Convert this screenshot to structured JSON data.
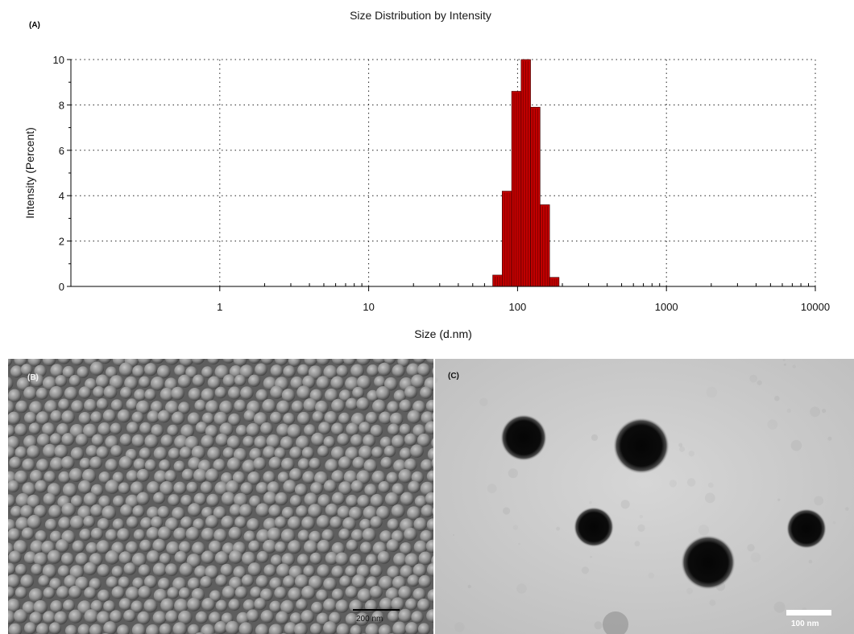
{
  "figure": {
    "panel_labels": {
      "a": "(A)",
      "b": "(B)",
      "c": "(C)"
    }
  },
  "chart_data": {
    "type": "bar",
    "title": "Size Distribution by Intensity",
    "xlabel": "Size (d.nm)",
    "ylabel": "Intensity (Percent)",
    "x_scale": "log",
    "xlim": [
      0.1,
      10000
    ],
    "ylim": [
      0,
      10
    ],
    "x_ticks": [
      1,
      10,
      100,
      1000,
      10000
    ],
    "x_tick_labels": [
      "1",
      "10",
      "100",
      "1000",
      "10000"
    ],
    "y_ticks": [
      0,
      2,
      4,
      6,
      8,
      10
    ],
    "y_tick_labels": [
      "0",
      "2",
      "4",
      "6",
      "8",
      "10"
    ],
    "grid": true,
    "bar_color": "#c00000",
    "x": [
      68.1,
      78.8,
      91.3,
      105.7,
      122.4,
      141.8,
      164.2
    ],
    "values": [
      0.5,
      4.2,
      8.6,
      10.0,
      7.9,
      3.6,
      0.4
    ]
  },
  "sem_image": {
    "scale_bar_label": "200 nm"
  },
  "tem_image": {
    "scale_bar_label": "100 nm"
  }
}
